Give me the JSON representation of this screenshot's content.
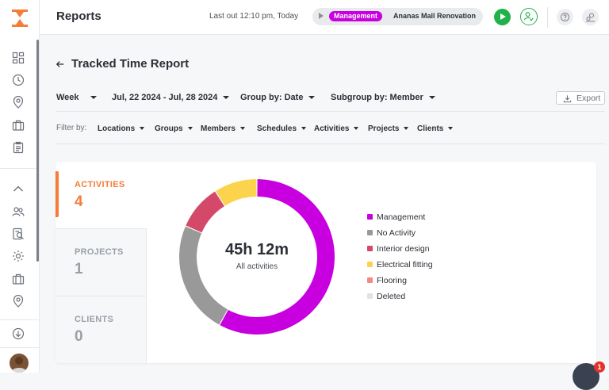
{
  "app": {
    "name": "Reports",
    "brand_color": "#f47d3a"
  },
  "topbar": {
    "title": "Reports",
    "last_out": "Last out 12:10 pm, Today",
    "timer": {
      "activity": "Management",
      "project": "Ananas Mall Renovation",
      "activity_color": "#c800e0"
    },
    "play_icon": "play-icon",
    "user_check_icon": "user-check-icon",
    "help_icon": "help-icon",
    "settings_icon": "settings-icon"
  },
  "sidebar": {
    "icons": [
      "dashboard-icon",
      "clock-icon",
      "location-icon",
      "briefcase-icon",
      "clipboard-icon",
      "chevron-up-icon",
      "users-icon",
      "report-icon",
      "settings-gear-icon",
      "briefcase-icon",
      "location-icon",
      "download-icon"
    ],
    "avatar": "user-avatar"
  },
  "report": {
    "back_icon": "arrow-left-icon",
    "title": "Tracked Time Report",
    "period": "Week",
    "date_range": "Jul, 22 2024 - Jul, 28 2024",
    "group_by": "Group by: Date",
    "subgroup_by": "Subgroup by: Member",
    "export_label": "Export",
    "export_icon": "download-icon"
  },
  "filters": {
    "label": "Filter by:",
    "items": [
      "Locations",
      "Groups",
      "Members",
      "Schedules",
      "Activities",
      "Projects",
      "Clients"
    ]
  },
  "tabs": [
    {
      "label": "ACTIVITIES",
      "count": "4",
      "active": true
    },
    {
      "label": "PROJECTS",
      "count": "1",
      "active": false
    },
    {
      "label": "CLIENTS",
      "count": "0",
      "active": false
    }
  ],
  "chart_data": {
    "type": "pie",
    "donut": true,
    "center_value": "45h 12m",
    "center_label": "All activities",
    "series": [
      {
        "name": "Management",
        "value": 0.58,
        "color": "#c800e0"
      },
      {
        "name": "No Activity",
        "value": 0.235,
        "color": "#999999"
      },
      {
        "name": "Interior design",
        "value": 0.095,
        "color": "#d4496a"
      },
      {
        "name": "Electrical fitting",
        "value": 0.09,
        "color": "#fcd34d"
      },
      {
        "name": "Flooring",
        "value": 0,
        "color": "#f28a80"
      },
      {
        "name": "Deleted",
        "value": 0,
        "color": "#e2e2e2"
      }
    ],
    "legend_position": "right"
  },
  "chat": {
    "badge": "1"
  }
}
